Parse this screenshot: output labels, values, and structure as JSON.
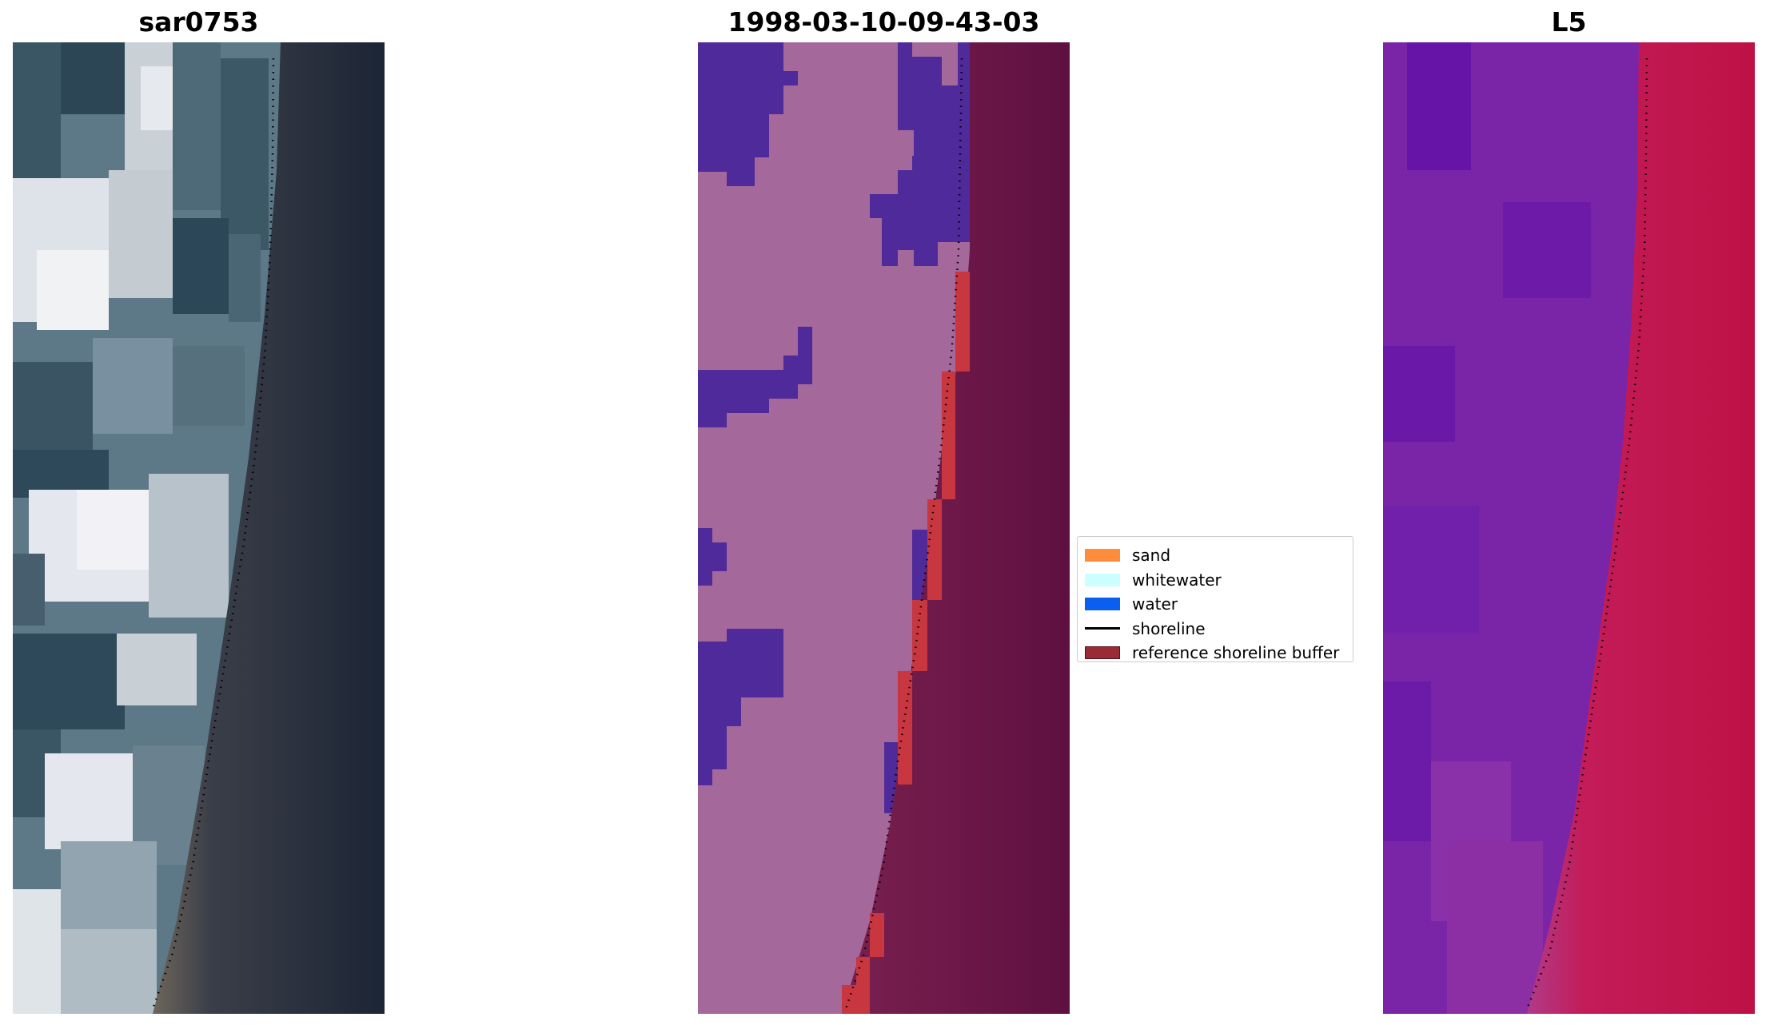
{
  "panels": [
    {
      "title": "sar0753"
    },
    {
      "title": "1998-03-10-09-43-03"
    },
    {
      "title": "L5"
    }
  ],
  "legend": {
    "items": [
      {
        "label": "sand",
        "color": "#ff8c3a",
        "kind": "patch"
      },
      {
        "label": "whitewater",
        "color": "#ccffff",
        "kind": "patch"
      },
      {
        "label": "water",
        "color": "#0a5ef0",
        "kind": "patch"
      },
      {
        "label": "shoreline",
        "color": "#000000",
        "kind": "line"
      },
      {
        "label": "reference shoreline buffer",
        "color": "#9a2a35",
        "kind": "patch"
      }
    ]
  },
  "colors": {
    "classified_land": "#a4689a",
    "classified_whitewater_class": "#4e2a9a",
    "classified_sea": "#651744",
    "reference_buffer": "#c8363f",
    "mndwi_land": "#6b1ca6",
    "mndwi_water": "#c11549",
    "rgb_sea": "#1e2838",
    "rgb_beach": "#6c6258",
    "rgb_cloud": "#d4dae0",
    "rgb_shadow": "#2e4a5a"
  }
}
